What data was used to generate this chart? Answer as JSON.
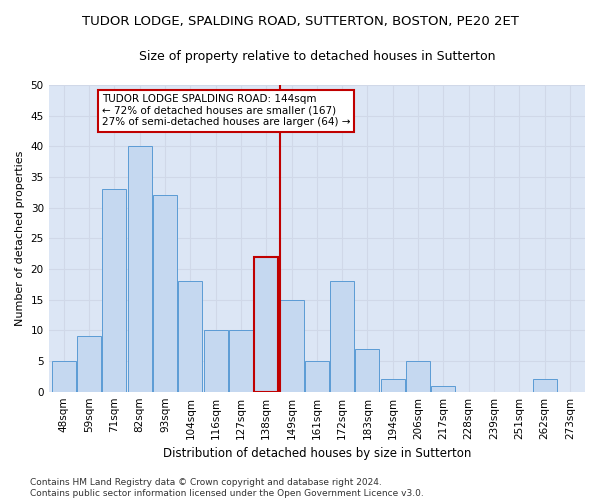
{
  "title": "TUDOR LODGE, SPALDING ROAD, SUTTERTON, BOSTON, PE20 2ET",
  "subtitle": "Size of property relative to detached houses in Sutterton",
  "xlabel": "Distribution of detached houses by size in Sutterton",
  "ylabel": "Number of detached properties",
  "categories": [
    "48sqm",
    "59sqm",
    "71sqm",
    "82sqm",
    "93sqm",
    "104sqm",
    "116sqm",
    "127sqm",
    "138sqm",
    "149sqm",
    "161sqm",
    "172sqm",
    "183sqm",
    "194sqm",
    "206sqm",
    "217sqm",
    "228sqm",
    "239sqm",
    "251sqm",
    "262sqm",
    "273sqm"
  ],
  "values": [
    5,
    9,
    33,
    40,
    32,
    18,
    10,
    10,
    22,
    15,
    5,
    18,
    7,
    2,
    5,
    1,
    0,
    0,
    0,
    2,
    0
  ],
  "bar_color": "#c5d8f0",
  "bar_edge_color": "#5b9bd5",
  "highlight_bar_index": 8,
  "highlight_bar_edge_color": "#c00000",
  "vline_color": "#c00000",
  "vline_x": 8.55,
  "annotation_text": "TUDOR LODGE SPALDING ROAD: 144sqm\n← 72% of detached houses are smaller (167)\n27% of semi-detached houses are larger (64) →",
  "annotation_box_facecolor": "#ffffff",
  "annotation_box_edgecolor": "#c00000",
  "ylim": [
    0,
    50
  ],
  "yticks": [
    0,
    5,
    10,
    15,
    20,
    25,
    30,
    35,
    40,
    45,
    50
  ],
  "grid_color": "#d0d8e8",
  "background_color": "#dce6f5",
  "footer_text": "Contains HM Land Registry data © Crown copyright and database right 2024.\nContains public sector information licensed under the Open Government Licence v3.0.",
  "title_fontsize": 9.5,
  "subtitle_fontsize": 9,
  "xlabel_fontsize": 8.5,
  "ylabel_fontsize": 8,
  "tick_fontsize": 7.5,
  "annotation_fontsize": 7.5,
  "footer_fontsize": 6.5
}
